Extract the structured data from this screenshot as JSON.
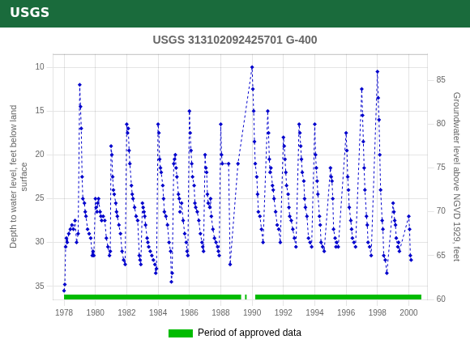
{
  "chart_data": {
    "type": "line",
    "title": "USGS 313102092425701 G-400",
    "header": {
      "text": "USGS",
      "color": "#1a6b3c"
    },
    "ylabel": "Depth to water level, feet below land\nsurface",
    "y2label": "Groundwater level above NGVD 1929, feet",
    "xlim": [
      1977.3,
      2001.2
    ],
    "xticks": [
      1978,
      1980,
      1982,
      1984,
      1986,
      1988,
      1990,
      1992,
      1994,
      1996,
      1998,
      2000
    ],
    "ylim": [
      36.5,
      8.5
    ],
    "yticks": [
      10,
      15,
      20,
      25,
      30,
      35
    ],
    "y2lim": [
      60,
      88
    ],
    "y2ticks": [
      60,
      65,
      70,
      75,
      80,
      85
    ],
    "grid": true,
    "x": [
      1978.0,
      1978.05,
      1978.1,
      1978.15,
      1978.2,
      1978.3,
      1978.4,
      1978.5,
      1978.6,
      1978.7,
      1978.8,
      1978.9,
      1979.0,
      1979.05,
      1979.1,
      1979.15,
      1979.2,
      1979.3,
      1979.35,
      1979.4,
      1979.5,
      1979.6,
      1979.7,
      1979.8,
      1979.85,
      1979.9,
      1980.0,
      1980.05,
      1980.1,
      1980.15,
      1980.2,
      1980.3,
      1980.35,
      1980.4,
      1980.5,
      1980.6,
      1980.7,
      1980.8,
      1980.9,
      1980.95,
      1981.0,
      1981.05,
      1981.1,
      1981.15,
      1981.2,
      1981.3,
      1981.35,
      1981.4,
      1981.5,
      1981.6,
      1981.7,
      1981.8,
      1981.9,
      1982.0,
      1982.05,
      1982.1,
      1982.15,
      1982.2,
      1982.3,
      1982.35,
      1982.4,
      1982.5,
      1982.6,
      1982.7,
      1982.8,
      1982.85,
      1982.9,
      1983.0,
      1983.05,
      1983.1,
      1983.15,
      1983.2,
      1983.3,
      1983.35,
      1983.4,
      1983.5,
      1983.6,
      1983.7,
      1983.8,
      1983.85,
      1983.9,
      1984.0,
      1984.05,
      1984.1,
      1984.15,
      1984.2,
      1984.3,
      1984.35,
      1984.4,
      1984.5,
      1984.6,
      1984.7,
      1984.8,
      1984.85,
      1984.9,
      1985.0,
      1985.05,
      1985.1,
      1985.15,
      1985.2,
      1985.3,
      1985.35,
      1985.4,
      1985.5,
      1985.6,
      1985.7,
      1985.8,
      1985.85,
      1985.9,
      1986.0,
      1986.05,
      1986.1,
      1986.15,
      1986.2,
      1986.3,
      1986.35,
      1986.4,
      1986.5,
      1986.6,
      1986.7,
      1986.8,
      1986.85,
      1986.9,
      1987.0,
      1987.05,
      1987.1,
      1987.15,
      1987.2,
      1987.3,
      1987.35,
      1987.4,
      1987.5,
      1987.6,
      1987.7,
      1987.8,
      1987.85,
      1987.9,
      1988.0,
      1988.05,
      1988.1,
      1988.5,
      1988.6,
      1989.1,
      1990.0,
      1990.05,
      1990.1,
      1990.15,
      1990.2,
      1990.3,
      1990.35,
      1990.4,
      1990.5,
      1990.6,
      1990.7,
      1991.0,
      1991.05,
      1991.1,
      1991.15,
      1991.2,
      1991.3,
      1991.35,
      1991.4,
      1991.5,
      1991.6,
      1991.7,
      1991.8,
      1992.0,
      1992.05,
      1992.1,
      1992.15,
      1992.2,
      1992.3,
      1992.35,
      1992.4,
      1992.5,
      1992.6,
      1992.7,
      1992.8,
      1993.0,
      1993.05,
      1993.1,
      1993.15,
      1993.2,
      1993.3,
      1993.35,
      1993.4,
      1993.5,
      1993.6,
      1993.7,
      1993.8,
      1994.0,
      1994.05,
      1994.1,
      1994.15,
      1994.2,
      1994.3,
      1994.35,
      1994.4,
      1994.5,
      1994.6,
      1995.0,
      1995.05,
      1995.1,
      1995.15,
      1995.2,
      1995.3,
      1995.35,
      1995.4,
      1995.5,
      1996.0,
      1996.05,
      1996.1,
      1996.15,
      1996.2,
      1996.3,
      1996.35,
      1996.4,
      1996.5,
      1996.6,
      1997.0,
      1997.05,
      1997.1,
      1997.15,
      1997.2,
      1997.3,
      1997.35,
      1997.4,
      1997.5,
      1997.6,
      1998.0,
      1998.05,
      1998.1,
      1998.15,
      1998.2,
      1998.3,
      1998.35,
      1998.4,
      1998.5,
      1998.6,
      1999.0,
      1999.05,
      1999.1,
      1999.15,
      1999.2,
      1999.3,
      1999.35,
      1999.4,
      2000.0,
      2000.05,
      2000.1,
      2000.15
    ],
    "series": [
      {
        "color": "#0000cc",
        "marker": "diamond",
        "line_style": "dashed",
        "values": [
          35.5,
          34.8,
          30.5,
          29.5,
          30.0,
          29.0,
          28.5,
          28.0,
          28.5,
          27.5,
          30.0,
          29.0,
          12.0,
          14.5,
          17.0,
          22.5,
          25.0,
          25.5,
          26.5,
          27.0,
          28.5,
          29.0,
          29.5,
          31.5,
          31.0,
          31.5,
          25.0,
          26.0,
          26.5,
          25.5,
          25.0,
          26.5,
          27.0,
          27.5,
          27.0,
          27.5,
          29.5,
          30.5,
          31.5,
          31.0,
          19.0,
          20.0,
          22.5,
          24.0,
          24.5,
          25.5,
          26.5,
          27.0,
          28.0,
          29.0,
          31.0,
          32.0,
          32.5,
          16.5,
          17.5,
          17.0,
          19.5,
          21.0,
          23.5,
          24.5,
          25.0,
          26.0,
          27.0,
          27.5,
          31.5,
          32.0,
          32.5,
          25.5,
          26.0,
          26.5,
          27.0,
          28.0,
          29.5,
          30.0,
          30.5,
          31.0,
          31.5,
          32.0,
          32.5,
          33.5,
          33.0,
          16.5,
          17.5,
          20.5,
          21.5,
          22.0,
          23.5,
          25.0,
          26.5,
          27.0,
          28.0,
          30.0,
          31.0,
          34.5,
          33.5,
          21.0,
          20.5,
          20.0,
          21.5,
          22.5,
          24.5,
          25.0,
          26.5,
          25.5,
          27.5,
          29.0,
          30.0,
          31.0,
          31.5,
          15.0,
          17.5,
          19.5,
          21.0,
          22.5,
          23.5,
          25.5,
          26.0,
          26.5,
          27.5,
          29.0,
          30.0,
          30.5,
          31.0,
          20.0,
          21.5,
          22.0,
          24.5,
          25.5,
          26.0,
          25.0,
          27.0,
          28.5,
          29.5,
          30.0,
          30.5,
          31.0,
          31.5,
          16.5,
          20.0,
          21.0,
          21.0,
          32.5,
          21.0,
          10.0,
          12.5,
          15.0,
          18.5,
          21.0,
          22.5,
          24.5,
          26.5,
          27.0,
          28.5,
          30.0,
          15.0,
          17.5,
          20.5,
          22.0,
          21.5,
          23.5,
          24.0,
          25.0,
          26.5,
          28.0,
          28.5,
          30.0,
          18.0,
          19.0,
          20.5,
          22.0,
          23.5,
          24.5,
          26.0,
          27.0,
          27.5,
          28.5,
          29.5,
          30.5,
          16.5,
          17.5,
          19.0,
          20.5,
          22.0,
          23.0,
          25.0,
          26.0,
          27.0,
          29.5,
          30.0,
          30.5,
          16.5,
          20.0,
          21.5,
          23.0,
          24.5,
          27.0,
          28.0,
          30.0,
          30.5,
          31.0,
          21.5,
          22.5,
          23.0,
          25.0,
          28.5,
          29.5,
          30.5,
          30.0,
          30.5,
          17.5,
          19.5,
          22.5,
          24.0,
          26.0,
          27.5,
          28.5,
          29.5,
          30.0,
          30.5,
          12.5,
          15.5,
          18.5,
          21.5,
          24.0,
          27.0,
          28.0,
          30.0,
          30.5,
          31.5,
          10.5,
          13.5,
          16.0,
          20.0,
          24.0,
          27.5,
          28.5,
          31.5,
          32.0,
          33.5,
          25.5,
          26.5,
          27.5,
          28.0,
          29.5,
          30.5,
          30.0,
          31.0,
          27.0,
          28.5,
          31.5,
          32.0
        ]
      }
    ],
    "approved_periods": {
      "name": "Period of approved data",
      "color": "#00bb00",
      "ranges": [
        [
          1978.0,
          1989.3
        ],
        [
          1989.55,
          1989.65
        ],
        [
          1990.2,
          2000.8
        ]
      ]
    },
    "legend": "bottom"
  }
}
